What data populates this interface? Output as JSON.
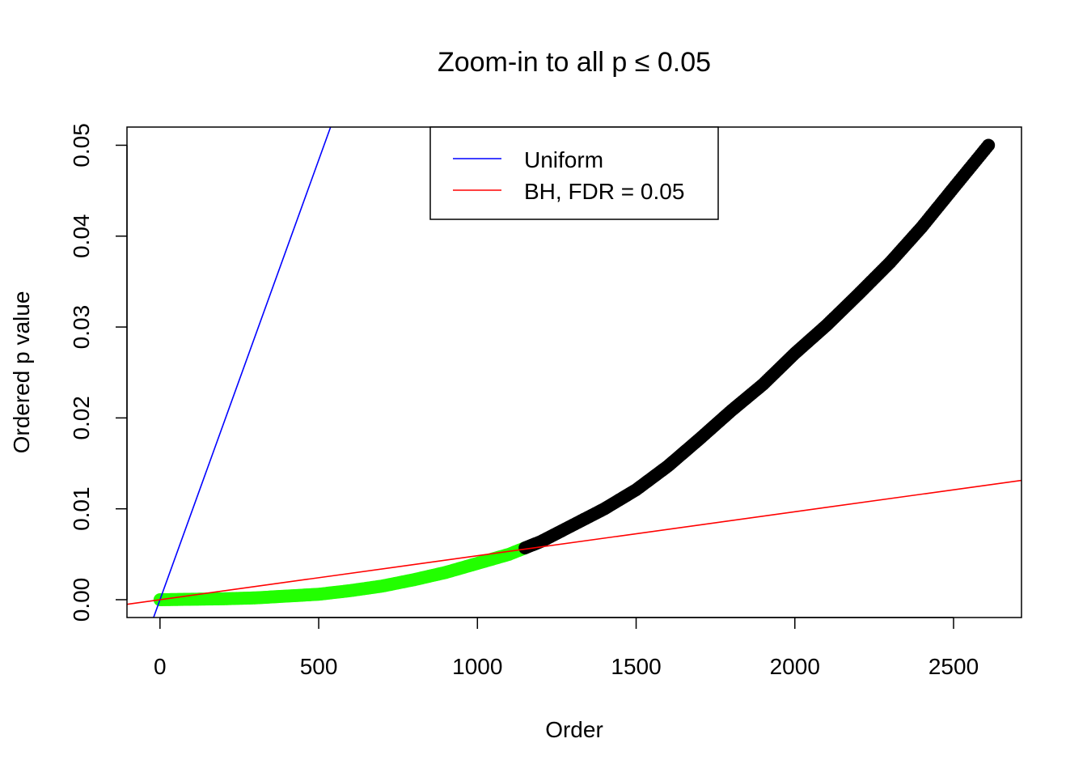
{
  "chart_data": {
    "type": "scatter",
    "title": "Zoom-in to all p ≤ 0.05",
    "xlabel": "Order",
    "ylabel": "Ordered p value",
    "xlim": [
      -104,
      2714
    ],
    "ylim": [
      -0.00196,
      0.052
    ],
    "x_ticks": [
      0,
      500,
      1000,
      1500,
      2000,
      2500
    ],
    "x_tick_labels": [
      "0",
      "500",
      "1000",
      "1500",
      "2000",
      "2500"
    ],
    "y_ticks": [
      0,
      0.01,
      0.02,
      0.03,
      0.04,
      0.05
    ],
    "y_tick_labels": [
      "0.00",
      "0.01",
      "0.02",
      "0.03",
      "0.04",
      "0.05"
    ],
    "grid": false,
    "legend": {
      "placement": "top-center",
      "entries": [
        {
          "label": "Uniform",
          "color": "#0000ff"
        },
        {
          "label": "BH, FDR = 0.05",
          "color": "#ff0000"
        }
      ]
    },
    "lines": [
      {
        "name": "Uniform",
        "color": "#0000ff",
        "slope": 9.676e-05,
        "intercept": 0
      },
      {
        "name": "BH, FDR = 0.05",
        "color": "#ff0000",
        "slope": 4.838e-06,
        "intercept": 0
      }
    ],
    "series": [
      {
        "color": "#22ff00",
        "x": [
          0,
          100,
          200,
          300,
          400,
          500,
          600,
          700,
          800,
          900,
          1000,
          1100,
          1150
        ],
        "y": [
          0,
          5e-05,
          0.0001,
          0.0002,
          0.0004,
          0.0006,
          0.001,
          0.0015,
          0.0022,
          0.003,
          0.004,
          0.005,
          0.0057
        ]
      },
      {
        "color": "#000000",
        "x": [
          1150,
          1200,
          1300,
          1400,
          1500,
          1600,
          1700,
          1800,
          1900,
          2000,
          2100,
          2200,
          2300,
          2400,
          2500,
          2610
        ],
        "y": [
          0.0057,
          0.0064,
          0.0082,
          0.01,
          0.0121,
          0.0147,
          0.0177,
          0.0208,
          0.0237,
          0.0271,
          0.0302,
          0.0336,
          0.0371,
          0.041,
          0.0453,
          0.05
        ]
      }
    ]
  }
}
